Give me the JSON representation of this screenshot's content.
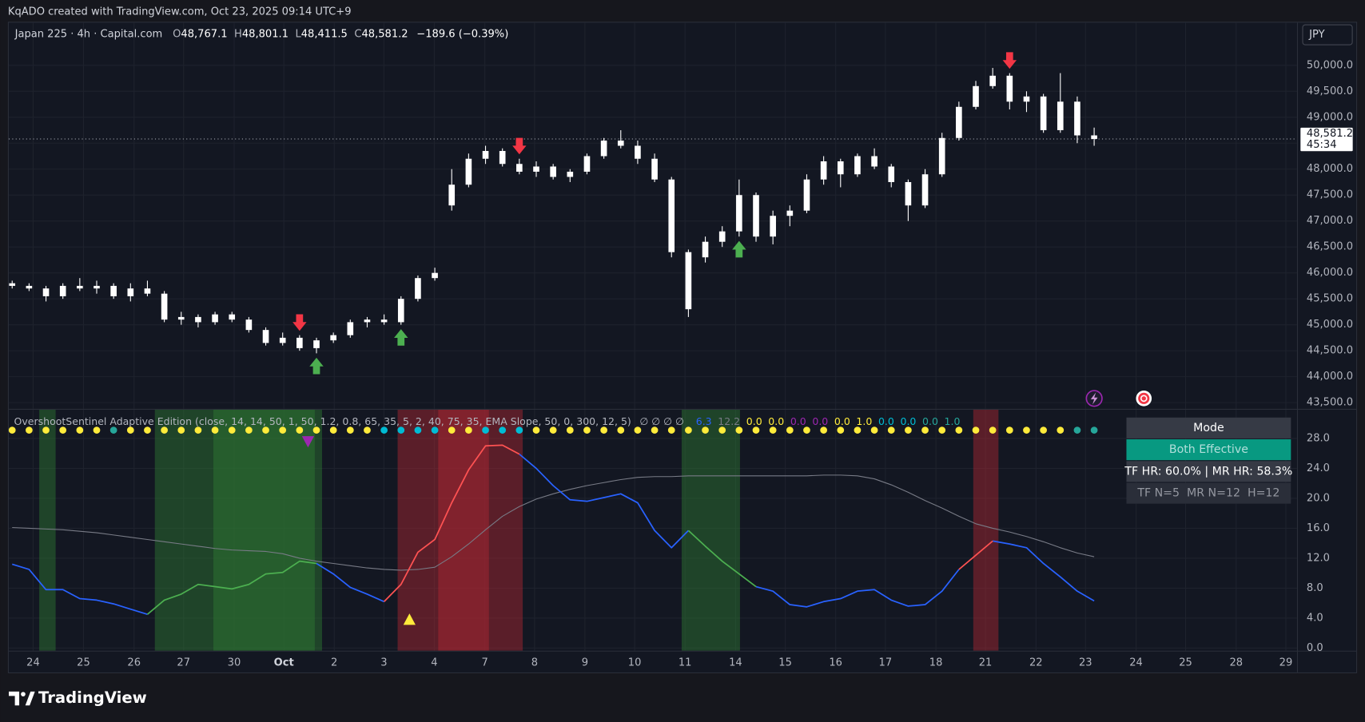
{
  "header": {
    "caption": "KqADO created with TradingView.com, Oct 23, 2025 09:14 UTC+9",
    "currency": "JPY",
    "logo": "TradingView"
  },
  "legend": {
    "symbol": "Japan 225 · 4h · Capital.com",
    "ohlc": [
      {
        "key": "O",
        "value": "48,767.1"
      },
      {
        "key": "H",
        "value": "48,801.1"
      },
      {
        "key": "L",
        "value": "48,411.5"
      },
      {
        "key": "C",
        "value": "48,581.2"
      }
    ],
    "change": "−189.6 (−0.39%)"
  },
  "table": {
    "rows": [
      "Mode",
      "Both Effective",
      "TF HR: 60.0% | MR HR: 58.3%",
      "TF N=5  MR N=12  H=12"
    ]
  },
  "chart_data": [
    {
      "type": "candlestick",
      "candle_color": "#ffffff",
      "grid": true,
      "ylim": [
        43380,
        50840
      ],
      "yticks": [
        {
          "value": 50000,
          "label": "50,000.0"
        },
        {
          "value": 49500,
          "label": "49,500.0"
        },
        {
          "value": 49000,
          "label": "49,000.0"
        },
        {
          "value": 48500,
          "label": "48,500.0"
        },
        {
          "value": 48000,
          "label": "48,000.0"
        },
        {
          "value": 47500,
          "label": "47,500.0"
        },
        {
          "value": 47000,
          "label": "47,000.0"
        },
        {
          "value": 46500,
          "label": "46,500.0"
        },
        {
          "value": 46000,
          "label": "46,000.0"
        },
        {
          "value": 45500,
          "label": "45,500.0"
        },
        {
          "value": 45000,
          "label": "45,000.0"
        },
        {
          "value": 44500,
          "label": "44,500.0"
        },
        {
          "value": 44000,
          "label": "44,000.0"
        },
        {
          "value": 43500,
          "label": "43,500.0"
        }
      ],
      "last_price": {
        "value": 48581.2,
        "label": "48,581.2"
      },
      "countdown": "45:34",
      "open": [
        45800,
        45750,
        45700,
        45550,
        45750,
        45700,
        45750,
        45550,
        45700,
        45600,
        45100,
        45150,
        45050,
        45200,
        45100,
        44900,
        44650,
        44750,
        44550,
        44700,
        44800,
        45050,
        45100,
        45050,
        45500,
        45900,
        47300,
        47700,
        48200,
        48350,
        48100,
        47950,
        48050,
        47850,
        47950,
        48250,
        48550,
        48450,
        48200,
        47800,
        46400,
        46300,
        46600,
        46800,
        47500,
        46700,
        47100,
        47200,
        47800,
        48150,
        47900,
        48250,
        48050,
        47750,
        47300,
        47900,
        48600,
        49200,
        49600,
        49800,
        49300,
        49400,
        48750,
        49300,
        48650
      ],
      "high": [
        45850,
        45800,
        45750,
        45800,
        45900,
        45850,
        45800,
        45800,
        45850,
        45650,
        45250,
        45200,
        45250,
        45250,
        45150,
        44950,
        44850,
        44800,
        44750,
        44850,
        45100,
        45150,
        45200,
        45550,
        45950,
        46100,
        48000,
        48300,
        48450,
        48400,
        48200,
        48150,
        48100,
        48000,
        48300,
        48600,
        48750,
        48550,
        48300,
        47850,
        46450,
        46700,
        46900,
        47800,
        47550,
        47200,
        47300,
        47900,
        48250,
        48200,
        48300,
        48400,
        48100,
        47800,
        48000,
        48700,
        49300,
        49700,
        49950,
        49850,
        49500,
        49450,
        49850,
        49400,
        48800
      ],
      "low": [
        45700,
        45650,
        45450,
        45500,
        45650,
        45600,
        45500,
        45450,
        45550,
        45050,
        45000,
        44950,
        45000,
        45050,
        44850,
        44600,
        44600,
        44500,
        44450,
        44650,
        44750,
        44950,
        45000,
        45000,
        45450,
        45850,
        47200,
        47650,
        48100,
        48050,
        47900,
        47850,
        47800,
        47750,
        47900,
        48200,
        48400,
        48100,
        47750,
        46300,
        45150,
        46200,
        46500,
        46700,
        46600,
        46550,
        46900,
        47150,
        47700,
        47650,
        47850,
        48000,
        47650,
        47000,
        47250,
        47850,
        48550,
        49150,
        49550,
        49150,
        49100,
        48700,
        48700,
        48500,
        48450
      ],
      "close": [
        45750,
        45700,
        45550,
        45750,
        45700,
        45750,
        45550,
        45700,
        45600,
        45100,
        45150,
        45050,
        45200,
        45100,
        44900,
        44650,
        44750,
        44550,
        44700,
        44800,
        45050,
        45100,
        45050,
        45500,
        45900,
        46000,
        47700,
        48200,
        48350,
        48100,
        47950,
        48050,
        47850,
        47950,
        48250,
        48550,
        48450,
        48200,
        47800,
        46400,
        45300,
        46600,
        46800,
        47500,
        46700,
        47100,
        47200,
        47800,
        48150,
        47900,
        48250,
        48050,
        47750,
        47300,
        47900,
        48600,
        49200,
        49600,
        49800,
        49300,
        49400,
        48750,
        49300,
        48650,
        48581.2
      ],
      "sell_signals": [
        17,
        30,
        59
      ],
      "sell_color": "#f23645",
      "buy_signals": [
        18,
        23,
        43
      ],
      "buy_color": "#4caf50"
    },
    {
      "type": "line",
      "grid": true,
      "title": "OvershootSentinel Adaptive Edition (close, 14, 14, 50, 1, 50, 1.2, 0.8, 65, 35, 5, 2, 40, 75, 35, EMA Slope, 50, 0, 300, 12, 5)",
      "empty_outputs": "∅ ∅ ∅ ∅",
      "outputs": [
        {
          "text": "6.3",
          "color": "#2962ff"
        },
        {
          "text": "12.2",
          "color": "#787b86"
        },
        {
          "text": "0.0",
          "color": "#ffeb3b"
        },
        {
          "text": "0.0",
          "color": "#ffeb3b"
        },
        {
          "text": "0.0",
          "color": "#9c27b0"
        },
        {
          "text": "0.0",
          "color": "#9c27b0"
        },
        {
          "text": "0.0",
          "color": "#ffeb3b"
        },
        {
          "text": "1.0",
          "color": "#ffeb3b"
        },
        {
          "text": "0.0",
          "color": "#00bcd4"
        },
        {
          "text": "0.0",
          "color": "#00bcd4"
        },
        {
          "text": "0.0",
          "color": "#26a69a"
        },
        {
          "text": "1.0",
          "color": "#26a69a"
        }
      ],
      "xlim": [
        -0.2,
        76.0
      ],
      "xticks": [
        {
          "value": 1.24,
          "label": "24"
        },
        {
          "value": 4.22,
          "label": "25"
        },
        {
          "value": 7.21,
          "label": "26"
        },
        {
          "value": 10.14,
          "label": "27"
        },
        {
          "value": 13.13,
          "label": "30"
        },
        {
          "value": 16.07,
          "label": "Oct"
        },
        {
          "value": 19.05,
          "label": "2"
        },
        {
          "value": 21.99,
          "label": "3"
        },
        {
          "value": 24.97,
          "label": "4"
        },
        {
          "value": 27.96,
          "label": "7"
        },
        {
          "value": 30.9,
          "label": "8"
        },
        {
          "value": 33.88,
          "label": "9"
        },
        {
          "value": 36.82,
          "label": "10"
        },
        {
          "value": 39.8,
          "label": "11"
        },
        {
          "value": 42.79,
          "label": "14"
        },
        {
          "value": 45.73,
          "label": "15"
        },
        {
          "value": 48.71,
          "label": "16"
        },
        {
          "value": 51.65,
          "label": "17"
        },
        {
          "value": 54.64,
          "label": "18"
        },
        {
          "value": 57.57,
          "label": "21"
        },
        {
          "value": 60.56,
          "label": "22"
        },
        {
          "value": 63.49,
          "label": "23"
        },
        {
          "value": 66.48,
          "label": "24"
        },
        {
          "value": 69.41,
          "label": "25"
        },
        {
          "value": 72.4,
          "label": "28"
        },
        {
          "value": 75.34,
          "label": "29"
        }
      ],
      "ylim": [
        -0.35,
        31.95
      ],
      "yticks": [
        {
          "value": 0,
          "label": "0.0"
        },
        {
          "value": 4,
          "label": "4.0"
        },
        {
          "value": 8,
          "label": "8.0"
        },
        {
          "value": 12,
          "label": "12.0"
        },
        {
          "value": 16,
          "label": "16.0"
        },
        {
          "value": 20,
          "label": "20.0"
        },
        {
          "value": 24,
          "label": "24.0"
        },
        {
          "value": 28,
          "label": "28.0"
        }
      ],
      "zones": [
        {
          "x": [
            1.6,
            2.57
          ],
          "color": "#2e7d32"
        },
        {
          "x": [
            8.44,
            18.33
          ],
          "color": "#2e7d32"
        },
        {
          "x": [
            11.9,
            17.9
          ],
          "color": "#2e7d32"
        },
        {
          "x": [
            39.6,
            43.05
          ],
          "color": "#2e7d32"
        },
        {
          "x": [
            22.8,
            30.2
          ],
          "color": "#b22833"
        },
        {
          "x": [
            25.2,
            28.2
          ],
          "color": "#b22833"
        },
        {
          "x": [
            56.85,
            58.34
          ],
          "color": "#b22833"
        }
      ],
      "series": [
        {
          "color": "#787b86",
          "values": [
            16.1,
            16.0,
            15.9,
            15.8,
            15.6,
            15.4,
            15.1,
            14.8,
            14.5,
            14.2,
            13.9,
            13.6,
            13.3,
            13.1,
            13.0,
            12.9,
            12.6,
            12.0,
            11.6,
            11.3,
            11.0,
            10.7,
            10.5,
            10.4,
            10.5,
            10.8,
            12.2,
            13.9,
            15.8,
            17.6,
            18.9,
            19.9,
            20.6,
            21.2,
            21.7,
            22.1,
            22.5,
            22.8,
            22.9,
            22.9,
            23.0,
            23.0,
            23.0,
            23.0,
            23.0,
            23.0,
            23.0,
            23.0,
            23.1,
            23.1,
            23.0,
            22.6,
            21.8,
            20.8,
            19.7,
            18.7,
            17.6,
            16.6,
            16.0,
            15.5,
            14.9,
            14.2,
            13.4,
            12.7,
            12.2
          ]
        },
        {
          "color": "#2962ff",
          "values": [
            11.2,
            10.5,
            7.8,
            7.8,
            6.6,
            6.4,
            5.9,
            5.2,
            4.5,
            null,
            null,
            null,
            null,
            null,
            null,
            null,
            null,
            null,
            11.3,
            9.9,
            8.1,
            7.2,
            6.2,
            null,
            null,
            null,
            null,
            null,
            null,
            null,
            25.9,
            24.0,
            21.7,
            19.8,
            19.6,
            20.1,
            20.6,
            19.4,
            15.7,
            13.4,
            15.7,
            null,
            null,
            null,
            8.2,
            7.6,
            5.8,
            5.5,
            6.2,
            6.6,
            7.6,
            7.8,
            6.4,
            5.6,
            5.8,
            7.6,
            10.5,
            null,
            14.3,
            13.9,
            13.4,
            11.3,
            9.5,
            7.6,
            6.3
          ]
        },
        {
          "color": "#4caf50",
          "values": [
            null,
            null,
            null,
            null,
            null,
            null,
            null,
            null,
            4.5,
            6.4,
            7.2,
            8.5,
            8.2,
            7.9,
            8.5,
            9.9,
            10.1,
            11.6,
            11.3,
            null,
            null,
            null,
            null,
            null,
            null,
            null,
            null,
            null,
            null,
            null,
            null,
            null,
            null,
            null,
            null,
            null,
            null,
            null,
            null,
            null,
            15.7,
            13.6,
            11.6,
            9.9,
            8.2,
            null,
            null,
            null,
            null,
            null,
            null,
            null,
            null,
            null,
            null,
            null,
            null,
            null,
            null,
            null,
            null,
            null,
            null,
            null,
            null
          ]
        },
        {
          "color": "#ff5252",
          "values": [
            null,
            null,
            null,
            null,
            null,
            null,
            null,
            null,
            null,
            null,
            null,
            null,
            null,
            null,
            null,
            null,
            null,
            null,
            null,
            null,
            null,
            null,
            6.2,
            8.5,
            12.8,
            14.5,
            19.4,
            23.8,
            27.0,
            27.1,
            25.9,
            null,
            null,
            null,
            null,
            null,
            null,
            null,
            null,
            null,
            null,
            null,
            null,
            null,
            null,
            null,
            null,
            null,
            null,
            null,
            null,
            null,
            null,
            null,
            null,
            null,
            10.5,
            12.4,
            14.3,
            null,
            null,
            null,
            null,
            null,
            null
          ]
        }
      ],
      "dot_colors": [
        "#ffeb3b",
        "#ffeb3b",
        "#ffeb3b",
        "#ffeb3b",
        "#ffeb3b",
        "#ffeb3b",
        "#26a69a",
        "#ffeb3b",
        "#ffeb3b",
        "#ffeb3b",
        "#ffeb3b",
        "#ffeb3b",
        "#ffeb3b",
        "#ffeb3b",
        "#ffeb3b",
        "#ffeb3b",
        "#ffeb3b",
        "#ffeb3b",
        "#ffeb3b",
        "#ffeb3b",
        "#ffeb3b",
        "#ffeb3b",
        "#00bcd4",
        "#00bcd4",
        "#00bcd4",
        "#00bcd4",
        "#ffeb3b",
        "#ffeb3b",
        "#00bcd4",
        "#00bcd4",
        "#00bcd4",
        "#ffeb3b",
        "#ffeb3b",
        "#ffeb3b",
        "#ffeb3b",
        "#ffeb3b",
        "#ffeb3b",
        "#ffeb3b",
        "#ffeb3b",
        "#ffeb3b",
        "#ffeb3b",
        "#ffeb3b",
        "#ffeb3b",
        "#ffeb3b",
        "#ffeb3b",
        "#ffeb3b",
        "#ffeb3b",
        "#ffeb3b",
        "#ffeb3b",
        "#ffeb3b",
        "#ffeb3b",
        "#ffeb3b",
        "#ffeb3b",
        "#ffeb3b",
        "#ffeb3b",
        "#ffeb3b",
        "#ffeb3b",
        "#ffeb3b",
        "#ffeb3b",
        "#ffeb3b",
        "#ffeb3b",
        "#ffeb3b",
        "#ffeb3b",
        "#26a69a",
        "#26a69a"
      ],
      "markers": [
        {
          "x": 17.5,
          "y": 27.6,
          "shape": "down",
          "color": "#9c27b0"
        },
        {
          "x": 23.5,
          "y": 3.8,
          "shape": "up",
          "color": "#ffeb3b"
        }
      ]
    }
  ]
}
